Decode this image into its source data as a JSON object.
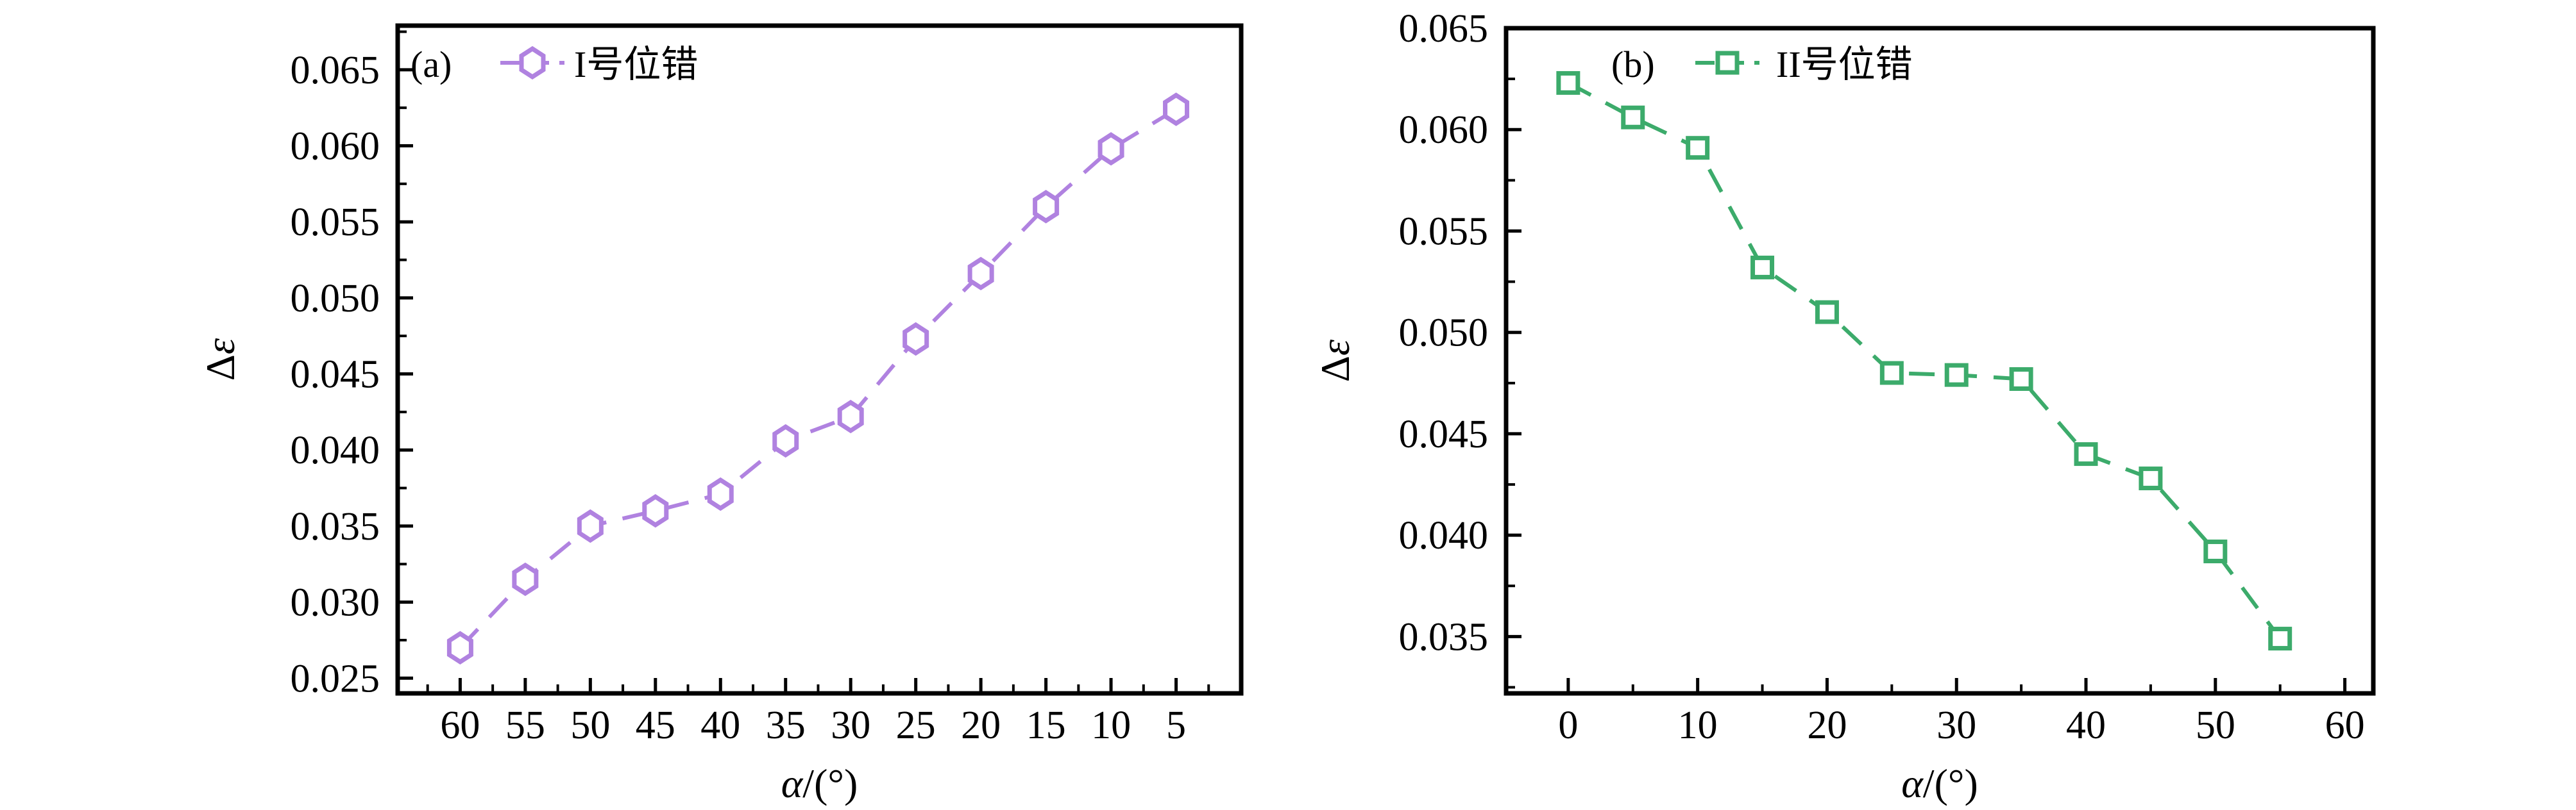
{
  "figure": {
    "background": "#ffffff",
    "axis_color": "#000000"
  },
  "chart_data": [
    {
      "type": "line",
      "panel_label": "(a)",
      "legend": {
        "label": "I号位错",
        "position": "top-left"
      },
      "series": [
        {
          "name": "I号位错",
          "color": "#b082e0",
          "marker": "hexagon",
          "marker_fill": "#ffffff",
          "linestyle": "dashed",
          "x": [
            60,
            55,
            50,
            45,
            40,
            35,
            30,
            25,
            20,
            15,
            10,
            5
          ],
          "y": [
            0.027,
            0.0315,
            0.035,
            0.036,
            0.0371,
            0.0406,
            0.0422,
            0.0473,
            0.0516,
            0.056,
            0.0598,
            0.0624
          ]
        }
      ],
      "xlabel": "α/(°)",
      "ylabel": "Δε",
      "x_axis_reversed": true,
      "xlim": [
        64.8,
        0.0
      ],
      "ylim": [
        0.024,
        0.0679
      ],
      "x_ticks": [
        60,
        55,
        50,
        45,
        40,
        35,
        30,
        25,
        20,
        15,
        10,
        5
      ],
      "x_tick_labels": [
        "60",
        "55",
        "50",
        "45",
        "40",
        "35",
        "30",
        "25",
        "20",
        "15",
        "10",
        "5"
      ],
      "x_minor_step": 2.5,
      "y_ticks": [
        0.025,
        0.03,
        0.035,
        0.04,
        0.045,
        0.05,
        0.055,
        0.06,
        0.065
      ],
      "y_tick_labels": [
        "0.025",
        "0.030",
        "0.035",
        "0.040",
        "0.045",
        "0.050",
        "0.055",
        "0.060",
        "0.065"
      ],
      "y_minor_step": 0.0025,
      "grid": false,
      "legend_glyph": "dash-hexagon-dash"
    },
    {
      "type": "line",
      "panel_label": "(b)",
      "legend": {
        "label": "II号位错",
        "position": "top-left"
      },
      "series": [
        {
          "name": "II号位错",
          "color": "#3cab6b",
          "marker": "square",
          "marker_fill": "#ffffff",
          "linestyle": "dashed",
          "x": [
            0,
            5,
            10,
            15,
            20,
            25,
            30,
            35,
            40,
            45,
            50,
            55
          ],
          "y": [
            0.0623,
            0.0606,
            0.0591,
            0.0532,
            0.051,
            0.048,
            0.0479,
            0.0477,
            0.044,
            0.0428,
            0.0392,
            0.0349
          ]
        }
      ],
      "xlabel": "α/(°)",
      "ylabel": "Δε",
      "x_axis_reversed": false,
      "xlim": [
        -4.8,
        62.2
      ],
      "ylim": [
        0.0322,
        0.065
      ],
      "x_ticks": [
        0,
        10,
        20,
        30,
        40,
        50,
        60
      ],
      "x_tick_labels": [
        "0",
        "10",
        "20",
        "30",
        "40",
        "50",
        "60"
      ],
      "x_minor_step": 5,
      "y_ticks": [
        0.035,
        0.04,
        0.045,
        0.05,
        0.055,
        0.06,
        0.065
      ],
      "y_tick_labels": [
        "0.035",
        "0.040",
        "0.045",
        "0.050",
        "0.055",
        "0.060",
        "0.065"
      ],
      "y_minor_step": 0.0025,
      "grid": false,
      "legend_glyph": "dash-square-dash"
    }
  ]
}
